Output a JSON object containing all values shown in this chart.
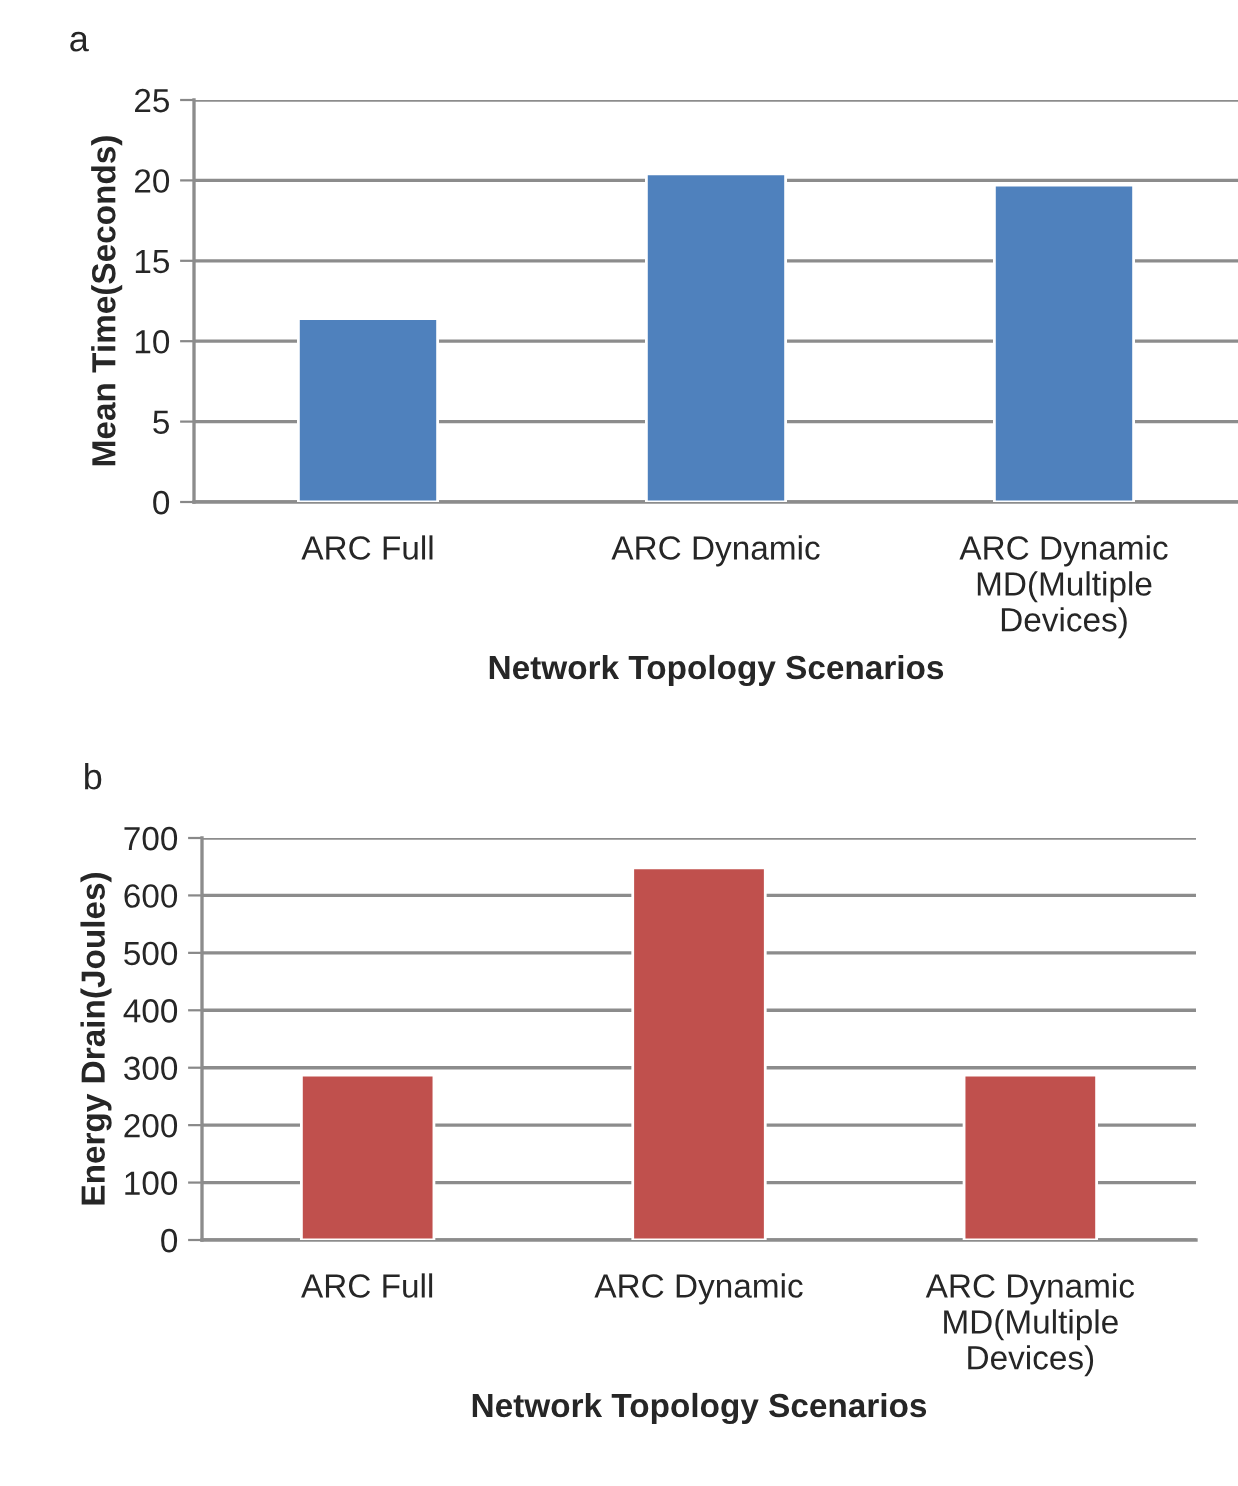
{
  "chart_data": [
    {
      "type": "bar",
      "title": "a",
      "xlabel": "Network Topology Scenarios",
      "ylabel": "Mean Time(Seconds)",
      "categories": [
        "ARC Full",
        "ARC Dynamic",
        "ARC Dynamic\nMD(Multiple\nDevices)"
      ],
      "values": [
        11.4,
        20.4,
        19.7
      ],
      "color": "#4f81bd",
      "ylim": [
        0,
        25
      ],
      "yticks": [
        0,
        5,
        10,
        15,
        20,
        25
      ],
      "grid": "y"
    },
    {
      "type": "bar",
      "title": "b",
      "xlabel": "Network Topology Scenarios",
      "ylabel": "Energy Drain(Joules)",
      "categories": [
        "ARC Full",
        "ARC Dynamic",
        "ARC Dynamic\nMD(Multiple\nDevices)"
      ],
      "values": [
        287,
        648,
        287
      ],
      "color": "#c0504d",
      "ylim": [
        0,
        700
      ],
      "yticks": [
        0,
        100,
        200,
        300,
        400,
        500,
        600,
        700
      ],
      "grid": "y"
    }
  ]
}
